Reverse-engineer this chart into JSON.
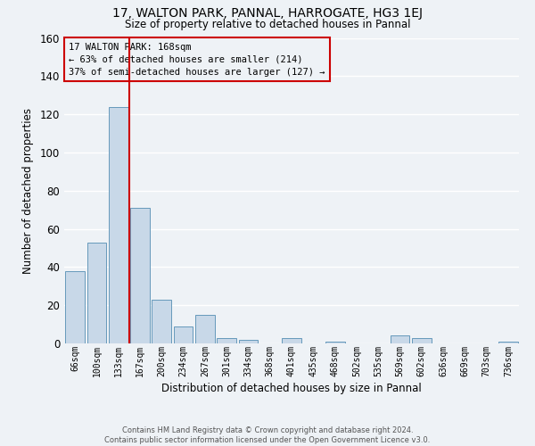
{
  "title1": "17, WALTON PARK, PANNAL, HARROGATE, HG3 1EJ",
  "title2": "Size of property relative to detached houses in Pannal",
  "xlabel": "Distribution of detached houses by size in Pannal",
  "ylabel": "Number of detached properties",
  "bar_labels": [
    "66sqm",
    "100sqm",
    "133sqm",
    "167sqm",
    "200sqm",
    "234sqm",
    "267sqm",
    "301sqm",
    "334sqm",
    "368sqm",
    "401sqm",
    "435sqm",
    "468sqm",
    "502sqm",
    "535sqm",
    "569sqm",
    "602sqm",
    "636sqm",
    "669sqm",
    "703sqm",
    "736sqm"
  ],
  "bar_values": [
    38,
    53,
    124,
    71,
    23,
    9,
    15,
    3,
    2,
    0,
    3,
    0,
    1,
    0,
    0,
    4,
    3,
    0,
    0,
    0,
    1
  ],
  "bar_color": "#c8d8e8",
  "bar_edge_color": "#6699bb",
  "vline_color": "#cc0000",
  "annotation_line1": "17 WALTON PARK: 168sqm",
  "annotation_line2": "← 63% of detached houses are smaller (214)",
  "annotation_line3": "37% of semi-detached houses are larger (127) →",
  "annotation_box_color": "#cc0000",
  "ylim": [
    0,
    160
  ],
  "yticks": [
    0,
    20,
    40,
    60,
    80,
    100,
    120,
    140,
    160
  ],
  "footer1": "Contains HM Land Registry data © Crown copyright and database right 2024.",
  "footer2": "Contains public sector information licensed under the Open Government Licence v3.0.",
  "bg_color": "#eef2f6",
  "grid_color": "#ffffff"
}
